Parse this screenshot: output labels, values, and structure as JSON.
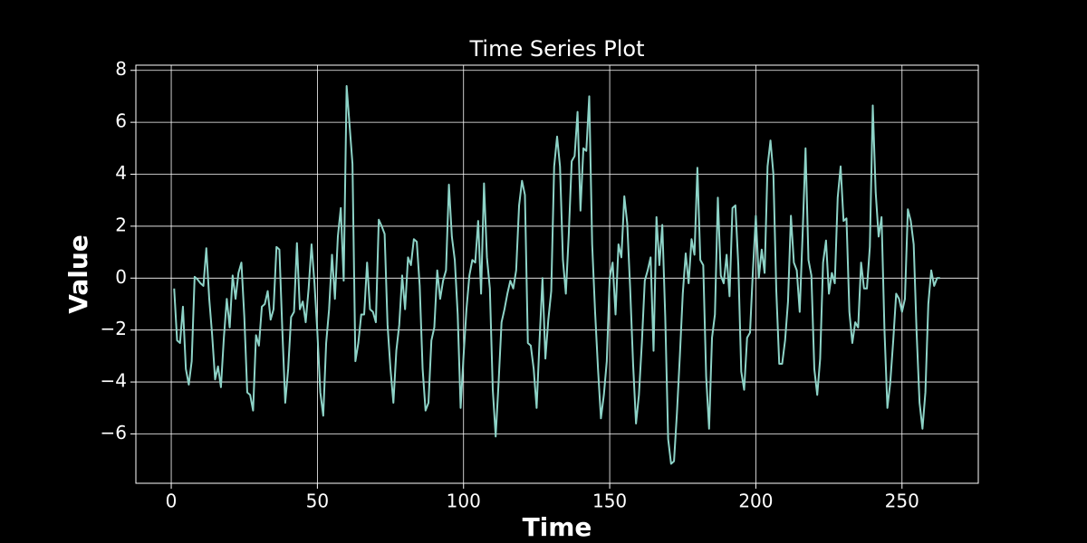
{
  "chart_data": {
    "type": "line",
    "title": "Time Series Plot",
    "x_label": "Time",
    "y_label": "Value",
    "x": [
      1,
      2,
      3,
      4,
      5,
      6,
      7,
      8,
      9,
      10,
      11,
      12,
      13,
      14,
      15,
      16,
      17,
      18,
      19,
      20,
      21,
      22,
      23,
      24,
      25,
      26,
      27,
      28,
      29,
      30,
      31,
      32,
      33,
      34,
      35,
      36,
      37,
      38,
      39,
      40,
      41,
      42,
      43,
      44,
      45,
      46,
      47,
      48,
      49,
      50,
      51,
      52,
      53,
      54,
      55,
      56,
      57,
      58,
      59,
      60,
      61,
      62,
      63,
      64,
      65,
      66,
      67,
      68,
      69,
      70,
      71,
      72,
      73,
      74,
      75,
      76,
      77,
      78,
      79,
      80,
      81,
      82,
      83,
      84,
      85,
      86,
      87,
      88,
      89,
      90,
      91,
      92,
      93,
      94,
      95,
      96,
      97,
      98,
      99,
      100,
      101,
      102,
      103,
      104,
      105,
      106,
      107,
      108,
      109,
      110,
      111,
      112,
      113,
      114,
      115,
      116,
      117,
      118,
      119,
      120,
      121,
      122,
      123,
      124,
      125,
      126,
      127,
      128,
      129,
      130,
      131,
      132,
      133,
      134,
      135,
      136,
      137,
      138,
      139,
      140,
      141,
      142,
      143,
      144,
      145,
      146,
      147,
      148,
      149,
      150,
      151,
      152,
      153,
      154,
      155,
      156,
      157,
      158,
      159,
      160,
      161,
      162,
      163,
      164,
      165,
      166,
      167,
      168,
      169,
      170,
      171,
      172,
      173,
      174,
      175,
      176,
      177,
      178,
      179,
      180,
      181,
      182,
      183,
      184,
      185,
      186,
      187,
      188,
      189,
      190,
      191,
      192,
      193,
      194,
      195,
      196,
      197,
      198,
      199,
      200,
      201,
      202,
      203,
      204,
      205,
      206,
      207,
      208,
      209,
      210,
      211,
      212,
      213,
      214,
      215,
      216,
      217,
      218,
      219,
      220,
      221,
      222,
      223,
      224,
      225,
      226,
      227,
      228,
      229,
      230,
      231,
      232,
      233,
      234,
      235,
      236,
      237,
      238,
      239,
      240,
      241,
      242,
      243,
      244,
      245,
      246,
      247,
      248,
      249,
      250,
      251,
      252,
      253,
      254,
      255,
      256,
      257,
      258,
      259,
      260,
      261,
      262,
      263
    ],
    "series": [
      {
        "color": "#8dd3c7",
        "values": [
          -0.4,
          -2.4,
          -2.5,
          -1.1,
          -3.5,
          -4.1,
          -3.2,
          0.05,
          -0.05,
          -0.2,
          -0.3,
          1.15,
          -0.8,
          -2.2,
          -3.9,
          -3.4,
          -4.2,
          -2.3,
          -0.8,
          -1.9,
          0.1,
          -0.8,
          0.2,
          0.6,
          -1.5,
          -4.4,
          -4.5,
          -5.1,
          -2.2,
          -2.6,
          -1.1,
          -1.0,
          -0.5,
          -1.6,
          -1.2,
          1.2,
          1.1,
          -2.0,
          -4.8,
          -3.5,
          -1.5,
          -1.3,
          1.35,
          -1.2,
          -0.9,
          -1.7,
          -0.4,
          1.3,
          -0.2,
          -2.1,
          -4.4,
          -5.3,
          -2.5,
          -1.2,
          0.9,
          -0.8,
          1.6,
          2.7,
          -0.1,
          7.4,
          5.9,
          4.4,
          -3.2,
          -2.5,
          -1.4,
          -1.4,
          0.6,
          -1.2,
          -1.3,
          -1.7,
          2.25,
          2.0,
          1.7,
          -1.8,
          -3.5,
          -4.8,
          -2.8,
          -1.8,
          0.1,
          -1.2,
          0.8,
          0.5,
          1.5,
          1.4,
          -0.3,
          -3.5,
          -5.1,
          -4.8,
          -2.4,
          -1.9,
          0.3,
          -0.8,
          -0.1,
          0.3,
          3.6,
          1.6,
          0.7,
          -1.4,
          -5.0,
          -3.0,
          -1.2,
          0.1,
          0.7,
          0.6,
          2.2,
          -0.6,
          3.65,
          0.8,
          -0.4,
          -4.3,
          -6.1,
          -4.0,
          -1.7,
          -1.2,
          -0.6,
          -0.1,
          -0.4,
          0.3,
          2.8,
          3.75,
          3.2,
          -2.5,
          -2.6,
          -3.5,
          -5.0,
          -2.4,
          0.0,
          -3.1,
          -1.6,
          -0.5,
          4.3,
          5.45,
          4.3,
          0.7,
          -0.6,
          1.7,
          4.5,
          4.7,
          6.4,
          2.6,
          5.0,
          4.9,
          7.0,
          1.3,
          -1.3,
          -3.5,
          -5.4,
          -4.5,
          -3.2,
          0.0,
          0.6,
          -1.4,
          1.3,
          0.8,
          3.15,
          2.1,
          -0.4,
          -3.3,
          -5.6,
          -4.5,
          -2.5,
          -0.1,
          0.3,
          0.8,
          -2.8,
          2.35,
          0.5,
          2.05,
          -1.5,
          -6.2,
          -7.15,
          -7.05,
          -5.2,
          -3.0,
          -0.6,
          0.95,
          -0.2,
          1.5,
          0.9,
          4.25,
          0.7,
          0.5,
          -3.8,
          -5.8,
          -2.3,
          -1.4,
          3.1,
          0.1,
          -0.2,
          0.9,
          -0.7,
          2.7,
          2.8,
          0.5,
          -3.6,
          -4.3,
          -2.3,
          -2.1,
          0.3,
          2.4,
          0.0,
          1.1,
          0.2,
          4.3,
          5.3,
          4.0,
          -0.5,
          -3.3,
          -3.3,
          -2.4,
          -0.9,
          2.4,
          0.6,
          0.3,
          -1.3,
          1.7,
          5.0,
          0.7,
          0.1,
          -3.5,
          -4.5,
          -3.1,
          0.6,
          1.45,
          -0.6,
          0.2,
          -0.2,
          3.1,
          4.3,
          2.2,
          2.3,
          -1.3,
          -2.5,
          -1.7,
          -1.9,
          0.6,
          -0.4,
          -0.4,
          1.2,
          6.65,
          3.3,
          1.6,
          2.35,
          -2.0,
          -5.0,
          -4.0,
          -2.4,
          -0.6,
          -0.8,
          -1.3,
          -0.8,
          2.65,
          2.2,
          1.3,
          -2.1,
          -4.8,
          -5.8,
          -4.4,
          -1.0,
          0.3,
          -0.3,
          0.0,
          0.0
        ]
      }
    ],
    "xlim": [
      -12.1,
      276.1
    ],
    "xticks": [
      0,
      50,
      100,
      150,
      200,
      250
    ],
    "ylim": [
      -7.9,
      8.2
    ],
    "yticks": [
      {
        "value": -6,
        "label": "−6"
      },
      {
        "value": -4,
        "label": "−4"
      },
      {
        "value": -2,
        "label": "−2"
      },
      0,
      2,
      4,
      6,
      8
    ],
    "grid": true
  }
}
